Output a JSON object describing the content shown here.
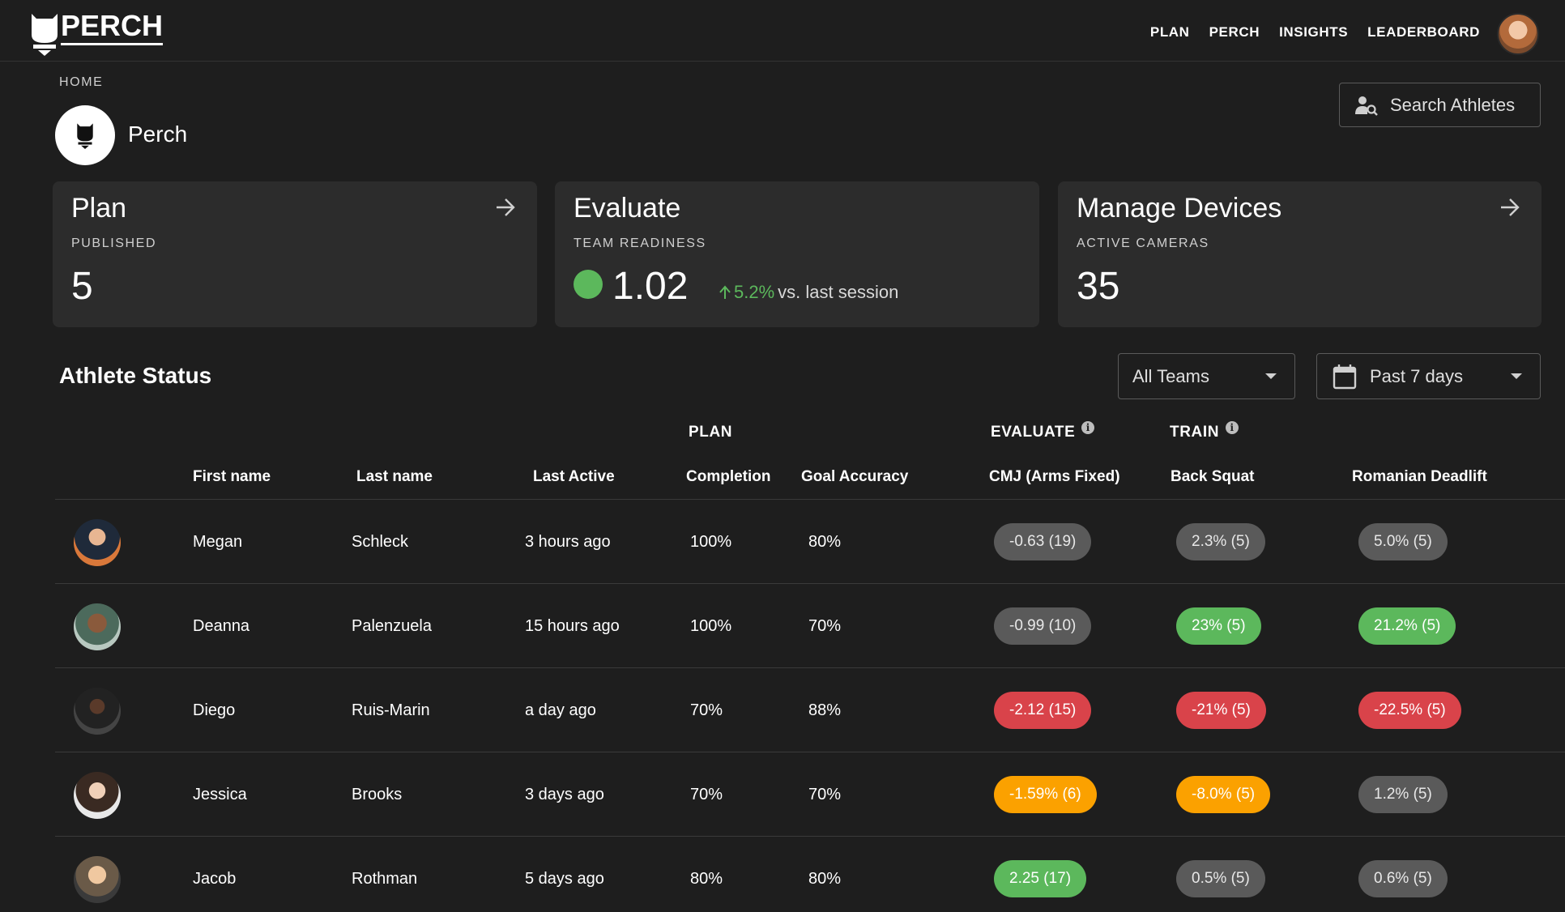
{
  "nav": {
    "logo_text": "PERCH",
    "items": [
      "PLAN",
      "PERCH",
      "INSIGHTS",
      "LEADERBOARD"
    ]
  },
  "breadcrumb": "HOME",
  "org": {
    "name": "Perch"
  },
  "search": {
    "label": "Search Athletes"
  },
  "cards": {
    "plan": {
      "title": "Plan",
      "subtitle": "PUBLISHED",
      "value": "5"
    },
    "evaluate": {
      "title": "Evaluate",
      "subtitle": "TEAM READINESS",
      "value": "1.02",
      "status_color": "#5cb85c",
      "delta": "5.2%",
      "delta_suffix": "vs. last session"
    },
    "devices": {
      "title": "Manage Devices",
      "subtitle": "ACTIVE CAMERAS",
      "value": "35"
    }
  },
  "athlete_status": {
    "title": "Athlete Status",
    "team_filter": "All Teams",
    "date_filter": "Past 7 days",
    "groups": {
      "plan": "PLAN",
      "evaluate": "EVALUATE",
      "train": "TRAIN"
    },
    "columns": [
      "First name",
      "Last name",
      "Last Active",
      "Completion",
      "Goal Accuracy",
      "CMJ (Arms Fixed)",
      "Back Squat",
      "Romanian Deadlift"
    ],
    "rows": [
      {
        "first": "Megan",
        "last": "Schleck",
        "active": "3 hours ago",
        "completion": "100%",
        "accuracy": "80%",
        "cmj": "-0.63 (19)",
        "cmj_status": "gray",
        "squat": "2.3% (5)",
        "squat_status": "gray",
        "rdl": "5.0% (5)",
        "rdl_status": "gray"
      },
      {
        "first": "Deanna",
        "last": "Palenzuela",
        "active": "15 hours ago",
        "completion": "100%",
        "accuracy": "70%",
        "cmj": "-0.99 (10)",
        "cmj_status": "gray",
        "squat": "23% (5)",
        "squat_status": "green",
        "rdl": "21.2% (5)",
        "rdl_status": "green"
      },
      {
        "first": "Diego",
        "last": "Ruis-Marin",
        "active": "a day ago",
        "completion": "70%",
        "accuracy": "88%",
        "cmj": "-2.12 (15)",
        "cmj_status": "red",
        "squat": "-21% (5)",
        "squat_status": "red",
        "rdl": "-22.5% (5)",
        "rdl_status": "red"
      },
      {
        "first": "Jessica",
        "last": "Brooks",
        "active": "3 days ago",
        "completion": "70%",
        "accuracy": "70%",
        "cmj": "-1.59% (6)",
        "cmj_status": "orange",
        "squat": "-8.0% (5)",
        "squat_status": "orange",
        "rdl": "1.2% (5)",
        "rdl_status": "gray"
      },
      {
        "first": "Jacob",
        "last": "Rothman",
        "active": "5 days ago",
        "completion": "80%",
        "accuracy": "80%",
        "cmj": "2.25 (17)",
        "cmj_status": "green",
        "squat": "0.5% (5)",
        "squat_status": "gray",
        "rdl": "0.6% (5)",
        "rdl_status": "gray"
      }
    ]
  },
  "colors": {
    "background": "#1e1e1e",
    "card": "#2c2c2c",
    "green": "#5cb85c",
    "red": "#d9434a",
    "orange": "#fba100",
    "gray": "#5a5a5a"
  }
}
